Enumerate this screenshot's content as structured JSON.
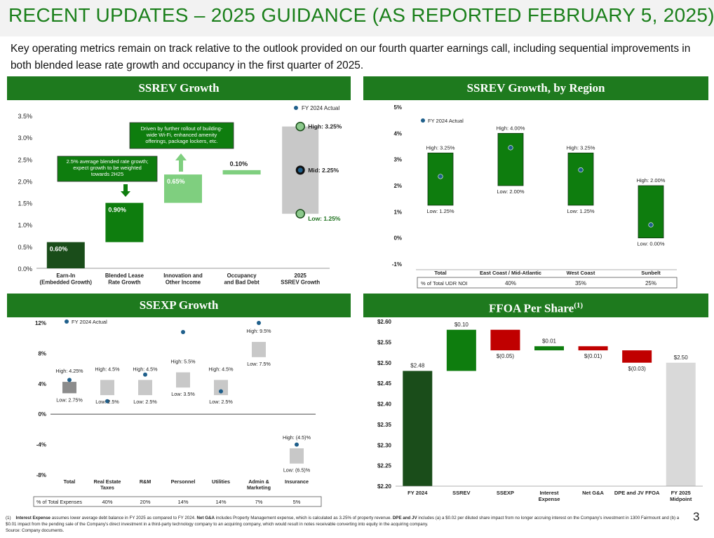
{
  "title": "RECENT UPDATES – 2025 GUIDANCE (AS REPORTED FEBRUARY 5, 2025)",
  "intro": "Key operating metrics remain on track relative to the outlook provided on our fourth quarter earnings call, including sequential improvements in both blended lease rate growth and occupancy in the first quarter of 2025.",
  "headers": {
    "ssrev": "SSREV Growth",
    "region": "SSREV Growth, by Region",
    "ssexp": "SSEXP Growth",
    "ffoa": "FFOA Per Share",
    "ffoa_sup": "(1)"
  },
  "colors": {
    "dark_green": "#1a4d1a",
    "green": "#0e7d0e",
    "light_green": "#7fcf7f",
    "gray": "#c8c8c8",
    "dot": "#1f5f8b",
    "red": "#c00000"
  },
  "chart_data": [
    {
      "id": "ssrev",
      "type": "bar",
      "subtype": "waterfall",
      "ylim": [
        0,
        3.5
      ],
      "yticks": [
        "0.0%",
        "0.5%",
        "1.0%",
        "1.5%",
        "2.0%",
        "2.5%",
        "3.0%",
        "3.5%"
      ],
      "legend": "FY 2024 Actual",
      "categories": [
        "Earn-In\n(Embedded Growth)",
        "Blended Lease\nRate Growth",
        "Innovation and\nOther Income",
        "Occupancy\nand Bad Debt",
        "2025\nSSREV Growth"
      ],
      "segments": [
        {
          "start": 0,
          "end": 0.6,
          "label": "0.60%"
        },
        {
          "start": 0.6,
          "end": 1.5,
          "label": "0.90%"
        },
        {
          "start": 1.5,
          "end": 2.15,
          "label": "0.65%"
        },
        {
          "start": 2.15,
          "end": 2.25,
          "label": "0.10%"
        }
      ],
      "range": {
        "low": 1.25,
        "mid": 2.25,
        "high": 3.25,
        "low_label": "Low: 1.25%",
        "mid_label": "Mid: 2.25%",
        "high_label": "High: 3.25%"
      },
      "callouts": [
        "2.5% average blended rate growth; expect growth to be weighted towards 2H25",
        "Driven by further rollout of building-wide Wi-Fi, enhanced amenity offerings, package lockers, etc."
      ]
    },
    {
      "id": "region",
      "type": "bar",
      "subtype": "range",
      "ylim": [
        -1,
        5
      ],
      "yticks": [
        "-1%",
        "0%",
        "1%",
        "2%",
        "3%",
        "4%",
        "5%"
      ],
      "legend": "FY 2024 Actual",
      "categories": [
        "Total",
        "East Coast / Mid-Atlantic",
        "West Coast",
        "Sunbelt"
      ],
      "low": [
        1.25,
        2.0,
        1.25,
        0.0
      ],
      "high": [
        3.25,
        4.0,
        3.25,
        2.0
      ],
      "actual": [
        2.35,
        3.45,
        2.6,
        0.5
      ],
      "high_labels": [
        "High: 3.25%",
        "High: 4.00%",
        "High: 3.25%",
        "High: 2.00%"
      ],
      "low_labels": [
        "Low: 1.25%",
        "Low: 2.00%",
        "Low: 1.25%",
        "Low: 0.00%"
      ],
      "table_label": "% of Total UDR NOI",
      "table_values": [
        "40%",
        "35%",
        "25%"
      ]
    },
    {
      "id": "ssexp",
      "type": "bar",
      "subtype": "range",
      "ylim": [
        -8,
        12
      ],
      "yticks": [
        "-8%",
        "-4%",
        "0%",
        "4%",
        "8%",
        "12%"
      ],
      "legend": "FY 2024 Actual",
      "categories": [
        "Total",
        "Real Estate\nTaxes",
        "R&M",
        "Personnel",
        "Utilities",
        "Admin &\nMarketing",
        "Insurance"
      ],
      "low": [
        2.75,
        2.5,
        2.5,
        3.5,
        2.5,
        7.5,
        -6.5
      ],
      "high": [
        4.25,
        4.5,
        4.5,
        5.5,
        4.5,
        9.5,
        -4.5
      ],
      "actual": [
        4.5,
        1.7,
        5.2,
        10.8,
        3.0,
        12.0,
        -4.0
      ],
      "high_labels": [
        "High: 4.25%",
        "High: 4.5%",
        "High: 4.5%",
        "High: 5.5%",
        "High: 4.5%",
        "High: 9.5%",
        "High: (4.5)%"
      ],
      "low_labels": [
        "Low: 2.75%",
        "Low: 2.5%",
        "Low: 2.5%",
        "Low: 3.5%",
        "Low: 2.5%",
        "Low: 7.5%",
        "Low: (6.5)%"
      ],
      "table_label": "% of Total Expenses",
      "table_values": [
        "40%",
        "20%",
        "14%",
        "14%",
        "7%",
        "5%"
      ]
    },
    {
      "id": "ffoa",
      "type": "bar",
      "subtype": "waterfall",
      "ylim": [
        2.2,
        2.6
      ],
      "yticks": [
        "$2.20",
        "$2.25",
        "$2.30",
        "$2.35",
        "$2.40",
        "$2.45",
        "$2.50",
        "$2.55",
        "$2.60"
      ],
      "categories": [
        "FY 2024",
        "SSREV",
        "SSEXP",
        "Interest\nExpense",
        "Net G&A",
        "DPE and JV FFOA",
        "FY 2025\nMidpoint"
      ],
      "bars": [
        {
          "start": 2.2,
          "end": 2.48,
          "label": "$2.48",
          "kind": "total"
        },
        {
          "start": 2.48,
          "end": 2.58,
          "label": "$0.10",
          "kind": "up"
        },
        {
          "start": 2.58,
          "end": 2.53,
          "label": "$(0.05)",
          "kind": "down"
        },
        {
          "start": 2.53,
          "end": 2.54,
          "label": "$0.01",
          "kind": "up"
        },
        {
          "start": 2.54,
          "end": 2.53,
          "label": "$(0.01)",
          "kind": "down"
        },
        {
          "start": 2.53,
          "end": 2.5,
          "label": "$(0.03)",
          "kind": "down"
        },
        {
          "start": 2.2,
          "end": 2.5,
          "label": "$2.50",
          "kind": "final"
        }
      ]
    }
  ],
  "footnote": {
    "num": "(1)",
    "b1": "Interest Expense",
    "t1": " assumes lower average debt balance in FY 2025 as compared to FY 2024. ",
    "b2": "Net G&A",
    "t2": " includes Property Management expense, which is calculated as 3.25% of property revenue. ",
    "b3": "DPE and JV",
    "t3": " includes (a) a $0.02 per diluted share impact from no longer accruing interest on the Company's investment in 1300 Fairmount and (b) a $0.01 impact from the pending sale of the Company's direct investment in a third-party technology company to an acquiring company, which would result in notes receivable converting into equity in the acquiring company.",
    "source": "Source: Company documents."
  },
  "page_number": "3"
}
